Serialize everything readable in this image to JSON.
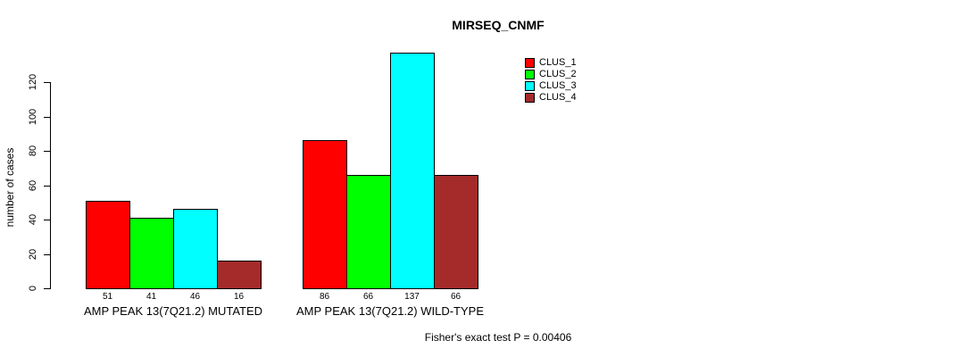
{
  "chart_data": {
    "type": "bar",
    "title": "MIRSEQ_CNMF",
    "xlabel": "",
    "ylabel": "number of cases",
    "ylim": [
      0,
      120
    ],
    "yticks": [
      0,
      20,
      40,
      60,
      80,
      100,
      120
    ],
    "grid": false,
    "legend_position": "top-right",
    "categories": [
      "AMP PEAK 13(7Q21.2) MUTATED",
      "AMP PEAK 13(7Q21.2) WILD-TYPE"
    ],
    "series": [
      {
        "name": "CLUS_1",
        "color": "#ff0000",
        "values": [
          51,
          86
        ]
      },
      {
        "name": "CLUS_2",
        "color": "#00ff00",
        "values": [
          41,
          66
        ]
      },
      {
        "name": "CLUS_3",
        "color": "#00ffff",
        "values": [
          46,
          137
        ]
      },
      {
        "name": "CLUS_4",
        "color": "#a52a2a",
        "values": [
          16,
          66
        ]
      }
    ],
    "annotation": "Fisher's exact test P = 0.00406"
  }
}
